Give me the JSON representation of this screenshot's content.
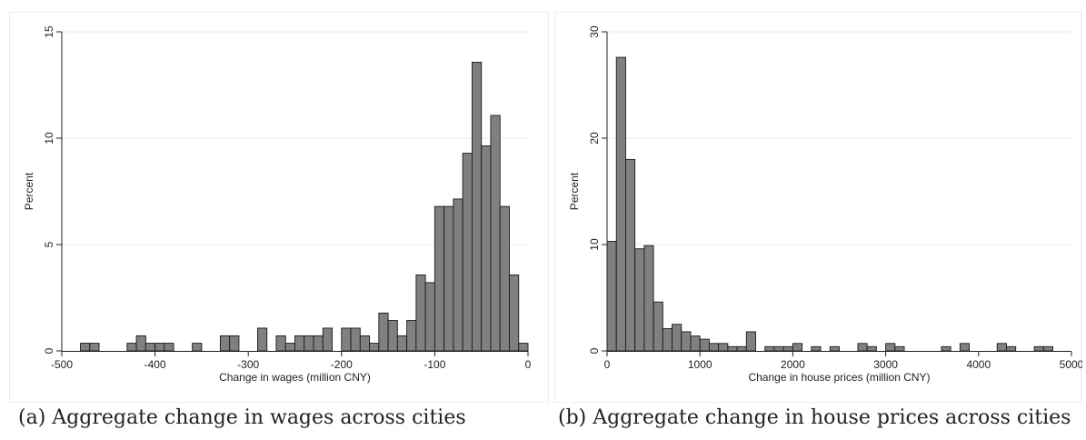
{
  "chart_data": [
    {
      "type": "bar",
      "subtype": "histogram",
      "caption": "(a) Aggregate change in wages across cities",
      "xlabel": "Change in wages (million CNY)",
      "ylabel": "Percent",
      "xlim": [
        -500,
        0
      ],
      "ylim": [
        0,
        15
      ],
      "xticks": [
        -500,
        -400,
        -300,
        -200,
        -100,
        0
      ],
      "xtick_labels": [
        "-500",
        "-400",
        "-300",
        "-200",
        "-100",
        "0"
      ],
      "yticks": [
        0,
        5,
        10,
        15
      ],
      "ytick_labels": [
        "0",
        "5",
        "10",
        "15"
      ],
      "grid": "horizontal",
      "bar_color": "#808080",
      "bin_width": 10,
      "bins": [
        {
          "x": -475,
          "value": 0.36
        },
        {
          "x": -465,
          "value": 0.36
        },
        {
          "x": -425,
          "value": 0.36
        },
        {
          "x": -415,
          "value": 0.71
        },
        {
          "x": -405,
          "value": 0.36
        },
        {
          "x": -395,
          "value": 0.36
        },
        {
          "x": -385,
          "value": 0.36
        },
        {
          "x": -355,
          "value": 0.36
        },
        {
          "x": -325,
          "value": 0.71
        },
        {
          "x": -315,
          "value": 0.71
        },
        {
          "x": -285,
          "value": 1.07
        },
        {
          "x": -265,
          "value": 0.71
        },
        {
          "x": -255,
          "value": 0.36
        },
        {
          "x": -245,
          "value": 0.71
        },
        {
          "x": -235,
          "value": 0.71
        },
        {
          "x": -225,
          "value": 0.71
        },
        {
          "x": -215,
          "value": 1.07
        },
        {
          "x": -195,
          "value": 1.07
        },
        {
          "x": -185,
          "value": 1.07
        },
        {
          "x": -175,
          "value": 0.71
        },
        {
          "x": -165,
          "value": 0.36
        },
        {
          "x": -155,
          "value": 1.78
        },
        {
          "x": -145,
          "value": 1.43
        },
        {
          "x": -135,
          "value": 0.71
        },
        {
          "x": -125,
          "value": 1.43
        },
        {
          "x": -115,
          "value": 3.57
        },
        {
          "x": -105,
          "value": 3.21
        },
        {
          "x": -95,
          "value": 6.79
        },
        {
          "x": -85,
          "value": 6.79
        },
        {
          "x": -75,
          "value": 7.14
        },
        {
          "x": -65,
          "value": 9.29
        },
        {
          "x": -55,
          "value": 13.57
        },
        {
          "x": -45,
          "value": 9.64
        },
        {
          "x": -35,
          "value": 11.07
        },
        {
          "x": -25,
          "value": 6.79
        },
        {
          "x": -15,
          "value": 3.57
        },
        {
          "x": -5,
          "value": 0.36
        }
      ]
    },
    {
      "type": "bar",
      "subtype": "histogram",
      "caption": "(b) Aggregate change in house prices across cities",
      "xlabel": "Change in house prices (million CNY)",
      "ylabel": "Percent",
      "xlim": [
        0,
        5000
      ],
      "ylim": [
        0,
        30
      ],
      "xticks": [
        0,
        1000,
        2000,
        3000,
        4000,
        5000
      ],
      "xtick_labels": [
        "0",
        "1000",
        "2000",
        "3000",
        "4000",
        "5000"
      ],
      "yticks": [
        0,
        10,
        20,
        30
      ],
      "ytick_labels": [
        "0",
        "10",
        "20",
        "30"
      ],
      "grid": "horizontal",
      "bar_color": "#808080",
      "bin_width": 100,
      "bins": [
        {
          "x": 50,
          "value": 10.3
        },
        {
          "x": 150,
          "value": 27.6
        },
        {
          "x": 250,
          "value": 18.0
        },
        {
          "x": 350,
          "value": 9.6
        },
        {
          "x": 450,
          "value": 9.9
        },
        {
          "x": 550,
          "value": 4.6
        },
        {
          "x": 650,
          "value": 2.1
        },
        {
          "x": 750,
          "value": 2.5
        },
        {
          "x": 850,
          "value": 1.8
        },
        {
          "x": 950,
          "value": 1.4
        },
        {
          "x": 1050,
          "value": 1.1
        },
        {
          "x": 1150,
          "value": 0.7
        },
        {
          "x": 1250,
          "value": 0.7
        },
        {
          "x": 1350,
          "value": 0.4
        },
        {
          "x": 1450,
          "value": 0.4
        },
        {
          "x": 1550,
          "value": 1.8
        },
        {
          "x": 1750,
          "value": 0.4
        },
        {
          "x": 1850,
          "value": 0.4
        },
        {
          "x": 1950,
          "value": 0.4
        },
        {
          "x": 2050,
          "value": 0.7
        },
        {
          "x": 2250,
          "value": 0.4
        },
        {
          "x": 2450,
          "value": 0.4
        },
        {
          "x": 2750,
          "value": 0.7
        },
        {
          "x": 2850,
          "value": 0.4
        },
        {
          "x": 3050,
          "value": 0.7
        },
        {
          "x": 3150,
          "value": 0.4
        },
        {
          "x": 3650,
          "value": 0.4
        },
        {
          "x": 3850,
          "value": 0.7
        },
        {
          "x": 4250,
          "value": 0.7
        },
        {
          "x": 4350,
          "value": 0.4
        },
        {
          "x": 4650,
          "value": 0.4
        },
        {
          "x": 4750,
          "value": 0.4
        }
      ]
    }
  ]
}
